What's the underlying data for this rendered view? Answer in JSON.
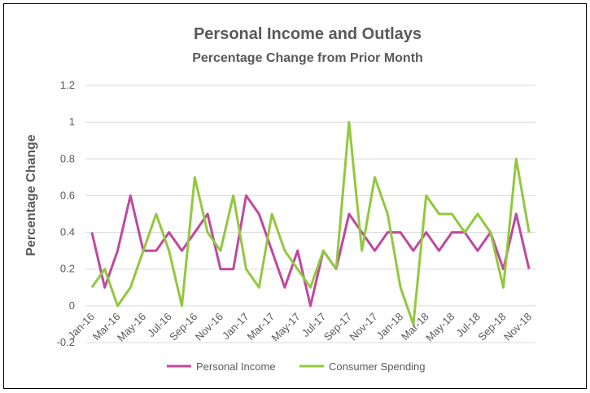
{
  "chart_data": {
    "type": "line",
    "title": "Personal Income and Outlays",
    "subtitle": "Percentage Change from Prior Month",
    "y_label": "Percentage Change",
    "categories": [
      "Jan-16",
      null,
      "Mar-16",
      null,
      "May-16",
      null,
      "Jul-16",
      null,
      "Sep-16",
      null,
      "Nov-16",
      null,
      "Jan-17",
      null,
      "Mar-17",
      null,
      "May-17",
      null,
      "Jul-17",
      null,
      "Sep-17",
      null,
      "Nov-17",
      null,
      "Jan-18",
      null,
      "Mar-18",
      null,
      "May-18",
      null,
      "Jul-18",
      null,
      "Sep-18",
      null,
      "Nov-18"
    ],
    "series": [
      {
        "name": "Personal Income",
        "color": "#c0489e",
        "values": [
          0.4,
          0.1,
          0.3,
          0.6,
          0.3,
          0.3,
          0.4,
          0.3,
          0.4,
          0.5,
          0.2,
          0.2,
          0.6,
          0.5,
          0.3,
          0.1,
          0.3,
          0.0,
          0.3,
          0.2,
          0.5,
          0.4,
          0.3,
          0.4,
          0.4,
          0.3,
          0.4,
          0.3,
          0.4,
          0.4,
          0.3,
          0.4,
          0.2,
          0.5,
          0.2
        ]
      },
      {
        "name": "Consumer Spending",
        "color": "#92c83e",
        "values": [
          0.1,
          0.2,
          0.0,
          0.1,
          0.3,
          0.5,
          0.3,
          0.0,
          0.7,
          0.4,
          0.3,
          0.6,
          0.2,
          0.1,
          0.5,
          0.3,
          0.2,
          0.1,
          0.3,
          0.2,
          1.0,
          0.3,
          0.7,
          0.5,
          0.1,
          -0.1,
          0.6,
          0.5,
          0.5,
          0.4,
          0.5,
          0.4,
          0.1,
          0.8,
          0.4
        ]
      }
    ],
    "ylim": [
      -0.2,
      1.2
    ],
    "yticks": [
      -0.2,
      0,
      0.2,
      0.4,
      0.6,
      0.8,
      1,
      1.2
    ],
    "grid": true,
    "legend": "bottom"
  }
}
